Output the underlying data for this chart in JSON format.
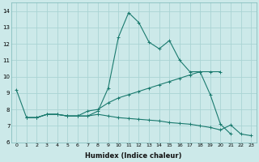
{
  "xlabel": "Humidex (Indice chaleur)",
  "background_color": "#cce9e9",
  "grid_color": "#aad4d4",
  "line_color": "#1a7a6e",
  "xlim": [
    -0.5,
    23.5
  ],
  "ylim": [
    6,
    14.5
  ],
  "yticks": [
    6,
    7,
    8,
    9,
    10,
    11,
    12,
    13,
    14
  ],
  "xticks": [
    0,
    1,
    2,
    3,
    4,
    5,
    6,
    7,
    8,
    9,
    10,
    11,
    12,
    13,
    14,
    15,
    16,
    17,
    18,
    19,
    20,
    21,
    22,
    23
  ],
  "series1_x": [
    0,
    1,
    2,
    3,
    4,
    5,
    6,
    7,
    8,
    9,
    10,
    11,
    12,
    13,
    14,
    15,
    16,
    17,
    18,
    19,
    20,
    21
  ],
  "series1_y": [
    9.2,
    7.5,
    7.5,
    7.7,
    7.7,
    7.6,
    7.6,
    7.6,
    7.9,
    9.3,
    12.4,
    13.9,
    13.3,
    12.1,
    11.7,
    12.2,
    11.0,
    10.3,
    10.3,
    8.9,
    7.1,
    6.5
  ],
  "series1_markers_x": [
    0,
    1,
    2,
    3,
    4,
    5,
    6,
    7,
    8,
    9,
    10,
    11,
    12,
    13,
    14,
    15,
    16,
    17,
    18,
    19,
    20,
    21
  ],
  "series2_x": [
    1,
    2,
    3,
    4,
    5,
    6,
    7,
    8,
    9,
    10,
    11,
    12,
    13,
    14,
    15,
    16,
    17,
    18,
    19,
    20
  ],
  "series2_y": [
    7.5,
    7.5,
    7.7,
    7.7,
    7.6,
    7.6,
    7.9,
    8.0,
    8.4,
    8.7,
    8.9,
    9.1,
    9.3,
    9.5,
    9.7,
    9.9,
    10.1,
    10.3,
    10.3,
    10.3
  ],
  "series3_x": [
    1,
    2,
    3,
    4,
    5,
    6,
    7,
    8,
    9,
    10,
    11,
    12,
    13,
    14,
    15,
    16,
    17,
    18,
    19,
    20,
    21,
    22,
    23
  ],
  "series3_y": [
    7.5,
    7.5,
    7.7,
    7.7,
    7.6,
    7.6,
    7.6,
    7.7,
    7.6,
    7.5,
    7.45,
    7.4,
    7.35,
    7.3,
    7.2,
    7.15,
    7.1,
    7.0,
    6.9,
    6.75,
    7.05,
    6.5,
    6.4
  ]
}
